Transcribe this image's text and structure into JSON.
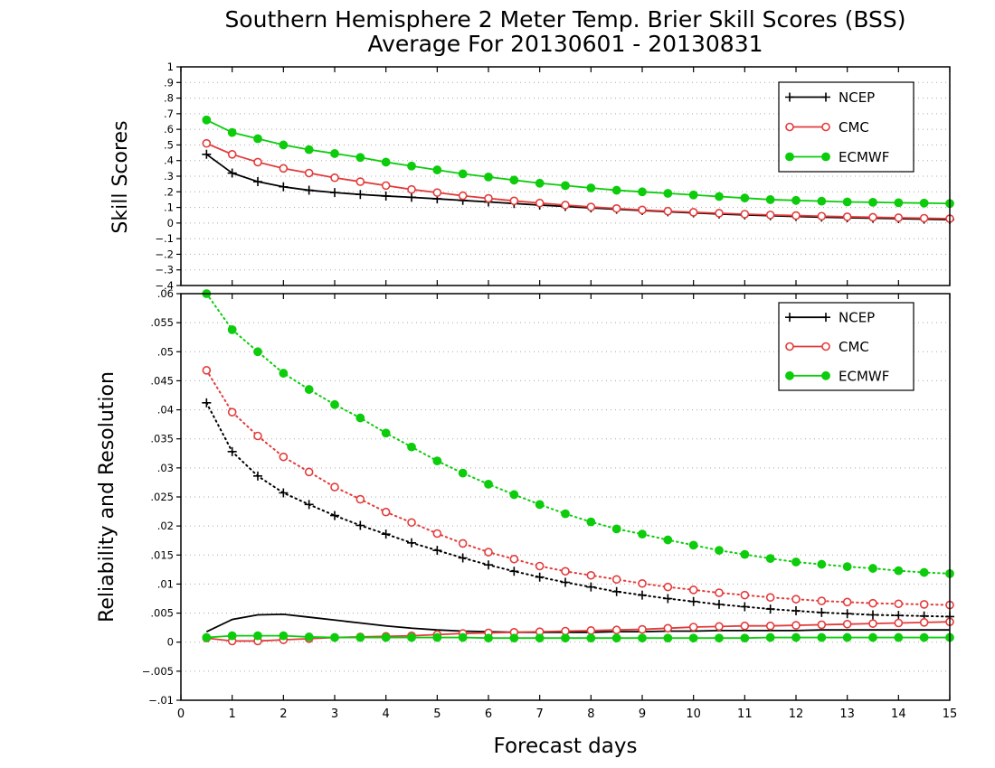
{
  "title_line1": "Southern Hemisphere 2 Meter Temp. Brier Skill Scores (BSS)",
  "title_line2": "Average For 20130601 - 20130831",
  "xlabel": "Forecast days",
  "colors": {
    "NCEP": "#000000",
    "CMC": "#e33b3b",
    "ECMWF": "#0ccc0c"
  },
  "chart_data": [
    {
      "type": "line",
      "ylabel": "Skill Scores",
      "xlim": [
        0,
        15
      ],
      "ylim": [
        -0.4,
        1.0
      ],
      "xticks": [
        0,
        1,
        2,
        3,
        4,
        5,
        6,
        7,
        8,
        9,
        10,
        11,
        12,
        13,
        14,
        15
      ],
      "yticks": [
        -0.4,
        -0.3,
        -0.2,
        -0.1,
        0,
        0.1,
        0.2,
        0.3,
        0.4,
        0.5,
        0.6,
        0.7,
        0.8,
        0.9,
        1
      ],
      "grid": "horizontal dotted",
      "legend": "top-right",
      "x": [
        0.5,
        1,
        1.5,
        2,
        2.5,
        3,
        3.5,
        4,
        4.5,
        5,
        5.5,
        6,
        6.5,
        7,
        7.5,
        8,
        8.5,
        9,
        9.5,
        10,
        10.5,
        11,
        11.5,
        12,
        12.5,
        13,
        13.5,
        14,
        14.5,
        15
      ],
      "series": [
        {
          "name": "NCEP",
          "marker": "plus",
          "style": "solid",
          "values": [
            0.44,
            0.32,
            0.265,
            0.232,
            0.21,
            0.195,
            0.183,
            0.173,
            0.165,
            0.155,
            0.145,
            0.135,
            0.125,
            0.115,
            0.106,
            0.097,
            0.088,
            0.08,
            0.072,
            0.065,
            0.058,
            0.052,
            0.047,
            0.042,
            0.038,
            0.034,
            0.031,
            0.028,
            0.025,
            0.022
          ]
        },
        {
          "name": "CMC",
          "marker": "circle-open",
          "style": "solid",
          "values": [
            0.51,
            0.44,
            0.39,
            0.35,
            0.32,
            0.29,
            0.265,
            0.24,
            0.215,
            0.195,
            0.175,
            0.158,
            0.142,
            0.128,
            0.115,
            0.103,
            0.093,
            0.084,
            0.076,
            0.069,
            0.063,
            0.057,
            0.052,
            0.048,
            0.044,
            0.04,
            0.037,
            0.034,
            0.031,
            0.028
          ]
        },
        {
          "name": "ECMWF",
          "marker": "circle-filled",
          "style": "solid",
          "values": [
            0.66,
            0.58,
            0.54,
            0.5,
            0.47,
            0.445,
            0.42,
            0.39,
            0.365,
            0.34,
            0.315,
            0.295,
            0.275,
            0.255,
            0.24,
            0.225,
            0.21,
            0.2,
            0.19,
            0.18,
            0.17,
            0.16,
            0.15,
            0.145,
            0.14,
            0.135,
            0.133,
            0.13,
            0.128,
            0.125
          ]
        }
      ]
    },
    {
      "type": "line",
      "ylabel": "Reliability and Resolution",
      "xlim": [
        0,
        15
      ],
      "ylim": [
        -0.01,
        0.06
      ],
      "xticks": [
        0,
        1,
        2,
        3,
        4,
        5,
        6,
        7,
        8,
        9,
        10,
        11,
        12,
        13,
        14,
        15
      ],
      "yticks": [
        -0.01,
        -0.005,
        0,
        0.005,
        0.01,
        0.015,
        0.02,
        0.025,
        0.03,
        0.035,
        0.04,
        0.045,
        0.05,
        0.055,
        0.06
      ],
      "grid": "horizontal dotted",
      "legend": "top-right",
      "x": [
        0.5,
        1,
        1.5,
        2,
        2.5,
        3,
        3.5,
        4,
        4.5,
        5,
        5.5,
        6,
        6.5,
        7,
        7.5,
        8,
        8.5,
        9,
        9.5,
        10,
        10.5,
        11,
        11.5,
        12,
        12.5,
        13,
        13.5,
        14,
        14.5,
        15
      ],
      "series": [
        {
          "name": "NCEP",
          "marker": "plus",
          "style": "dotted",
          "values": [
            0.0412,
            0.0328,
            0.0286,
            0.0257,
            0.0237,
            0.0218,
            0.0201,
            0.0186,
            0.0171,
            0.0158,
            0.0145,
            0.0133,
            0.0122,
            0.0112,
            0.0103,
            0.0095,
            0.0087,
            0.0081,
            0.0075,
            0.007,
            0.0065,
            0.0061,
            0.0057,
            0.0054,
            0.0051,
            0.0049,
            0.0047,
            0.0046,
            0.0045,
            0.0044
          ]
        },
        {
          "name": "CMC",
          "marker": "circle-open",
          "style": "dotted",
          "values": [
            0.0468,
            0.0396,
            0.0355,
            0.0319,
            0.0293,
            0.0267,
            0.0246,
            0.0224,
            0.0206,
            0.0187,
            0.017,
            0.0155,
            0.0143,
            0.0131,
            0.0122,
            0.0115,
            0.0108,
            0.0101,
            0.0095,
            0.009,
            0.0085,
            0.0081,
            0.0077,
            0.0074,
            0.0071,
            0.0069,
            0.0067,
            0.0066,
            0.0065,
            0.0064
          ]
        },
        {
          "name": "ECMWF",
          "marker": "circle-filled",
          "style": "dotted",
          "values": [
            0.06,
            0.0538,
            0.05,
            0.0463,
            0.0435,
            0.0409,
            0.0386,
            0.036,
            0.0336,
            0.0312,
            0.0291,
            0.0272,
            0.0254,
            0.0237,
            0.0221,
            0.0207,
            0.0195,
            0.0186,
            0.0176,
            0.0167,
            0.0158,
            0.0151,
            0.0144,
            0.0138,
            0.0134,
            0.013,
            0.0127,
            0.0123,
            0.012,
            0.0118
          ]
        },
        {
          "name": "NCEP",
          "marker": "none",
          "style": "solid",
          "values": [
            0.0018,
            0.0039,
            0.0047,
            0.0048,
            0.0043,
            0.0038,
            0.0033,
            0.0028,
            0.0024,
            0.0021,
            0.0019,
            0.0018,
            0.0017,
            0.0017,
            0.0017,
            0.0017,
            0.0018,
            0.0018,
            0.0019,
            0.0019,
            0.002,
            0.002,
            0.002,
            0.002,
            0.0021,
            0.0021,
            0.0021,
            0.0021,
            0.0021,
            0.0021
          ]
        },
        {
          "name": "CMC",
          "marker": "circle-open",
          "style": "solid",
          "values": [
            0.0007,
            0.0002,
            0.0002,
            0.0004,
            0.0006,
            0.0008,
            0.0009,
            0.001,
            0.0011,
            0.0013,
            0.0015,
            0.0016,
            0.0017,
            0.0018,
            0.0019,
            0.002,
            0.0021,
            0.0022,
            0.0024,
            0.0026,
            0.0027,
            0.0028,
            0.0028,
            0.0029,
            0.003,
            0.0031,
            0.0032,
            0.0033,
            0.0034,
            0.0035
          ]
        },
        {
          "name": "ECMWF",
          "marker": "circle-filled",
          "style": "solid",
          "values": [
            0.0008,
            0.0011,
            0.0011,
            0.0011,
            0.0009,
            0.0008,
            0.0008,
            0.0008,
            0.0008,
            0.0008,
            0.0008,
            0.0007,
            0.0007,
            0.0007,
            0.0007,
            0.0007,
            0.0007,
            0.0007,
            0.0007,
            0.0007,
            0.0007,
            0.0007,
            0.0008,
            0.0008,
            0.0008,
            0.0008,
            0.0008,
            0.0008,
            0.0008,
            0.0008
          ]
        }
      ]
    }
  ],
  "legend": [
    {
      "name": "NCEP",
      "marker": "plus"
    },
    {
      "name": "CMC",
      "marker": "circle-open"
    },
    {
      "name": "ECMWF",
      "marker": "circle-filled"
    }
  ]
}
